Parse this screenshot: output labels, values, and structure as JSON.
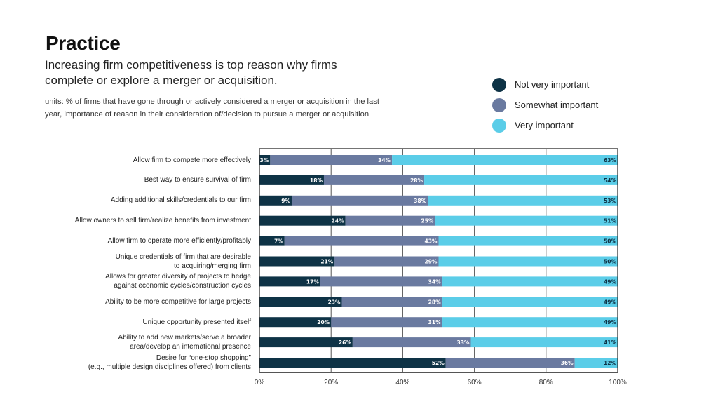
{
  "header": {
    "title": "Practice",
    "subtitle": "Increasing firm competitiveness is top reason why firms complete or explore a merger or acquisition.",
    "units": "units: % of firms that have gone through or actively considered a merger or acquisition in the last year, importance of reason in their consideration of/decision to pursue a merger or acquisition"
  },
  "legend": [
    {
      "label": "Not very important",
      "color": "#0e3346"
    },
    {
      "label": "Somewhat important",
      "color": "#6a7aa0"
    },
    {
      "label": "Very important",
      "color": "#5bcde8"
    }
  ],
  "chart_data": {
    "type": "bar",
    "orientation": "horizontal",
    "stacked": true,
    "title": "Practice",
    "subtitle": "Increasing firm competitiveness is top reason why firms complete or explore a merger or acquisition.",
    "xlabel": "",
    "ylabel": "",
    "xlim": [
      0,
      100
    ],
    "x_ticks": [
      "0%",
      "20%",
      "40%",
      "60%",
      "80%",
      "100%"
    ],
    "x_tick_values": [
      0,
      20,
      40,
      60,
      80,
      100
    ],
    "grid": true,
    "legend_position": "top-right",
    "categories": [
      [
        "Allow firm to compete more effectively"
      ],
      [
        "Best way to ensure survival of firm"
      ],
      [
        "Adding additional skills/credentials to our firm"
      ],
      [
        "Allow owners to sell firm/realize benefits from investment"
      ],
      [
        "Allow firm to operate more efficiently/profitably"
      ],
      [
        "Unique credentials of firm that are desirable",
        "to acquiring/merging firm"
      ],
      [
        "Allows for greater diversity of projects to hedge",
        "against economic cycles/construction cycles"
      ],
      [
        "Ability to be more competitive for large projects"
      ],
      [
        "Unique opportunity presented itself"
      ],
      [
        "Ability to add new markets/serve a broader",
        "area/develop an international presence"
      ],
      [
        "Desire for “one-stop shopping”",
        "(e.g., multiple design disciplines offered) from clients"
      ]
    ],
    "series": [
      {
        "name": "Not very important",
        "color": "#0e3346",
        "label_color": "#ffffff",
        "values": [
          3,
          18,
          9,
          24,
          7,
          21,
          17,
          23,
          20,
          26,
          52
        ]
      },
      {
        "name": "Somewhat important",
        "color": "#6a7aa0",
        "label_color": "#ffffff",
        "values": [
          34,
          28,
          38,
          25,
          43,
          29,
          34,
          28,
          31,
          33,
          36
        ]
      },
      {
        "name": "Very important",
        "color": "#5bcde8",
        "label_color": "#0e3346",
        "values": [
          63,
          54,
          53,
          51,
          50,
          50,
          49,
          49,
          49,
          41,
          12
        ]
      }
    ]
  }
}
